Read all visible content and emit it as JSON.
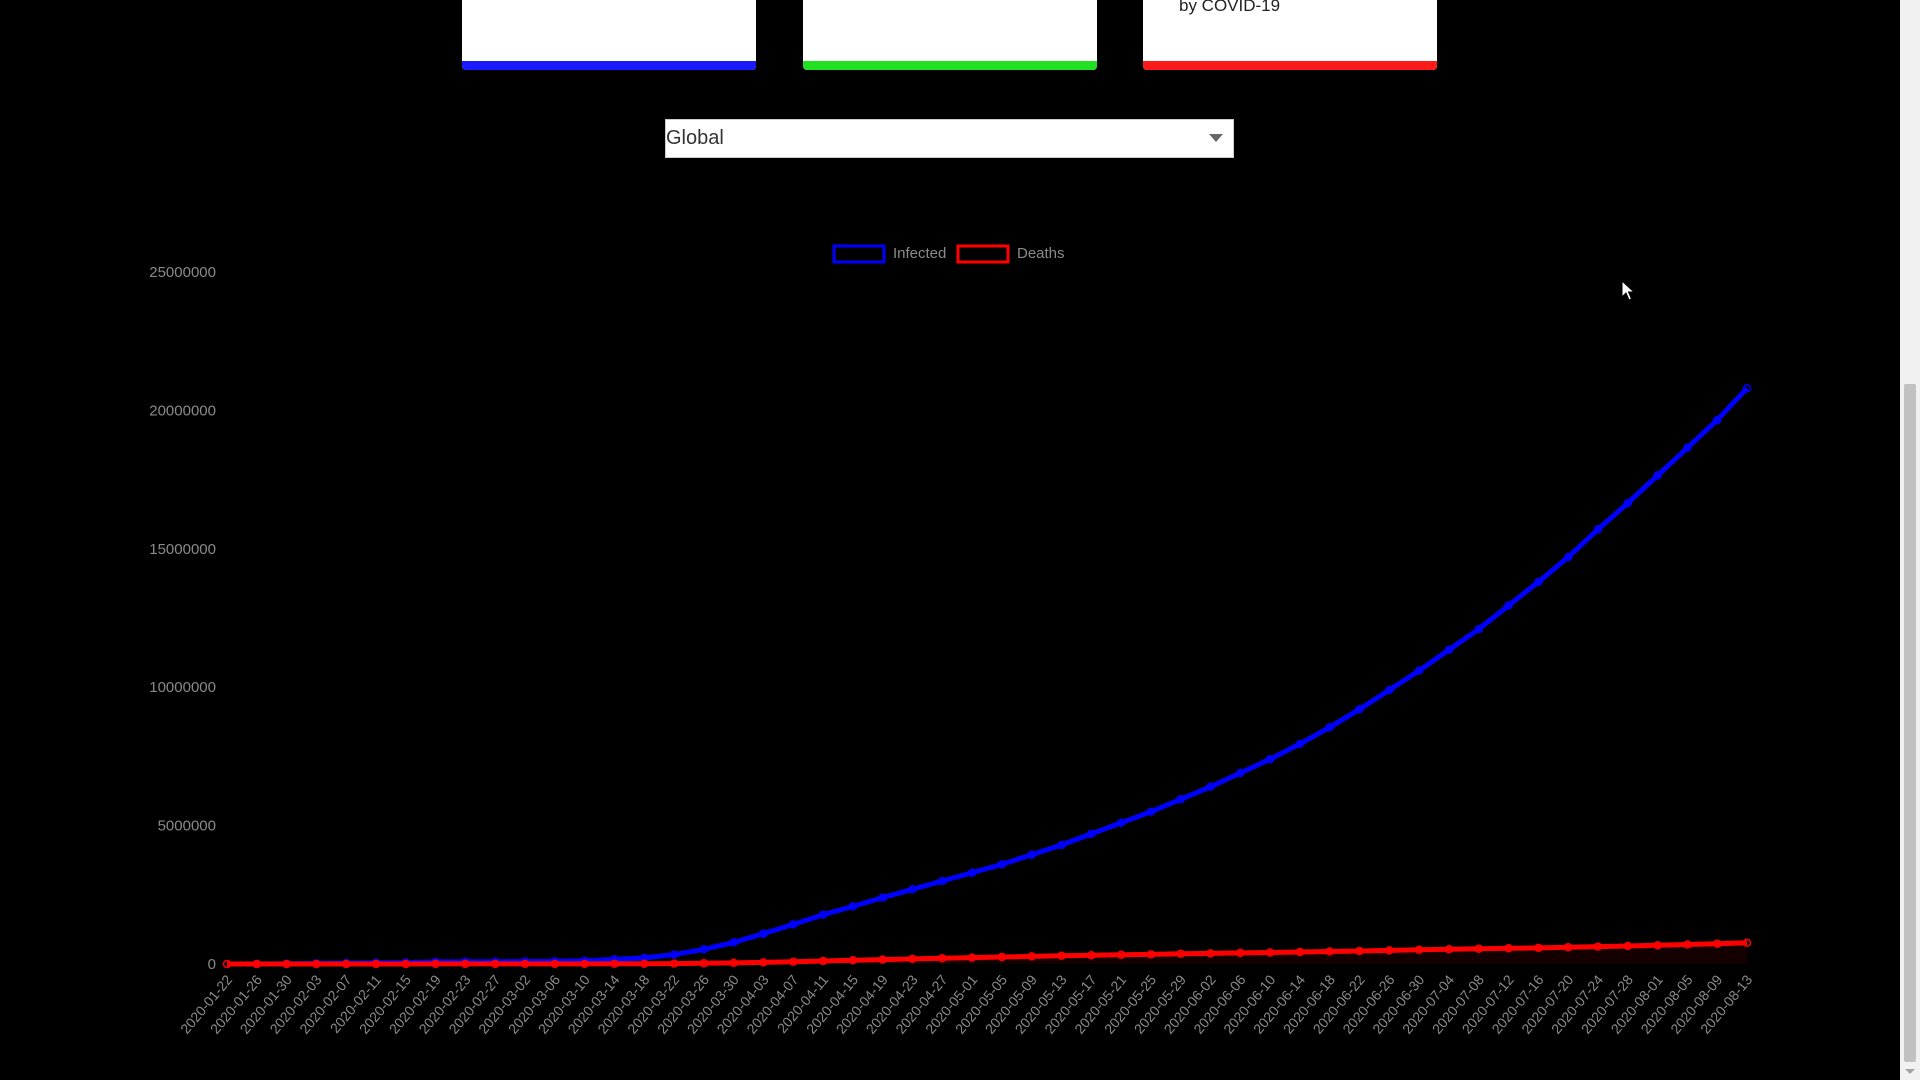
{
  "cards": {
    "infected": {
      "text": "",
      "color": "#1a1aff"
    },
    "recovered": {
      "text": "",
      "color": "#22e022"
    },
    "deaths": {
      "text": "by COVID-19",
      "color": "#ff1a1a"
    }
  },
  "country_select": {
    "value": "Global"
  },
  "chart_data": {
    "type": "line",
    "title": "",
    "xlabel": "",
    "ylabel": "",
    "legend_position": "top-center",
    "grid": false,
    "ylim": [
      0,
      25000000
    ],
    "y_ticks": [
      0,
      5000000,
      10000000,
      15000000,
      20000000,
      25000000
    ],
    "x_tick_labels": [
      "2020-01-22",
      "2020-01-26",
      "2020-01-30",
      "2020-02-03",
      "2020-02-07",
      "2020-02-11",
      "2020-02-15",
      "2020-02-19",
      "2020-02-23",
      "2020-02-27",
      "2020-03-02",
      "2020-03-06",
      "2020-03-10",
      "2020-03-14",
      "2020-03-18",
      "2020-03-22",
      "2020-03-26",
      "2020-03-30",
      "2020-04-03",
      "2020-04-07",
      "2020-04-11",
      "2020-04-15",
      "2020-04-19",
      "2020-04-23",
      "2020-04-27",
      "2020-05-01",
      "2020-05-05",
      "2020-05-09",
      "2020-05-13",
      "2020-05-17",
      "2020-05-21",
      "2020-05-25",
      "2020-05-29",
      "2020-06-02",
      "2020-06-06",
      "2020-06-10",
      "2020-06-14",
      "2020-06-18",
      "2020-06-22",
      "2020-06-26",
      "2020-06-30",
      "2020-07-04",
      "2020-07-08",
      "2020-07-12",
      "2020-07-16",
      "2020-07-20",
      "2020-07-24",
      "2020-07-28",
      "2020-08-01",
      "2020-08-05",
      "2020-08-09",
      "2020-08-13"
    ],
    "x": [
      "2020-01-22",
      "2020-01-26",
      "2020-01-30",
      "2020-02-03",
      "2020-02-07",
      "2020-02-11",
      "2020-02-15",
      "2020-02-19",
      "2020-02-23",
      "2020-02-27",
      "2020-03-02",
      "2020-03-06",
      "2020-03-10",
      "2020-03-14",
      "2020-03-18",
      "2020-03-22",
      "2020-03-26",
      "2020-03-30",
      "2020-04-03",
      "2020-04-07",
      "2020-04-11",
      "2020-04-15",
      "2020-04-19",
      "2020-04-23",
      "2020-04-27",
      "2020-05-01",
      "2020-05-05",
      "2020-05-09",
      "2020-05-13",
      "2020-05-17",
      "2020-05-21",
      "2020-05-25",
      "2020-05-29",
      "2020-06-02",
      "2020-06-06",
      "2020-06-10",
      "2020-06-14",
      "2020-06-18",
      "2020-06-22",
      "2020-06-26",
      "2020-06-30",
      "2020-07-04",
      "2020-07-08",
      "2020-07-12",
      "2020-07-16",
      "2020-07-20",
      "2020-07-24",
      "2020-07-28",
      "2020-08-01",
      "2020-08-05",
      "2020-08-09",
      "2020-08-13"
    ],
    "series": [
      {
        "name": "Infected",
        "color": "#0000ff",
        "values": [
          555,
          2100,
          9800,
          20000,
          34000,
          45000,
          51000,
          75000,
          79000,
          83000,
          90000,
          102000,
          119000,
          167000,
          220000,
          340000,
          530000,
          780000,
          1100000,
          1430000,
          1780000,
          2080000,
          2400000,
          2700000,
          3000000,
          3300000,
          3600000,
          3950000,
          4300000,
          4700000,
          5100000,
          5500000,
          5950000,
          6400000,
          6900000,
          7400000,
          7950000,
          8550000,
          9200000,
          9900000,
          10600000,
          11350000,
          12100000,
          12950000,
          13800000,
          14700000,
          15700000,
          16650000,
          17650000,
          18650000,
          19650000,
          20800000
        ]
      },
      {
        "name": "Deaths",
        "color": "#ff0000",
        "values": [
          17,
          56,
          213,
          427,
          719,
          1018,
          1526,
          2009,
          2469,
          2801,
          3110,
          3465,
          4262,
          5834,
          8900,
          14700,
          23900,
          38400,
          58800,
          81200,
          107900,
          132100,
          160400,
          185200,
          207300,
          230800,
          253700,
          275700,
          296900,
          318600,
          335200,
          348200,
          367500,
          382700,
          400100,
          417000,
          434800,
          451600,
          470700,
          491400,
          512400,
          530000,
          549000,
          565600,
          583000,
          605000,
          628000,
          650000,
          680000,
          705000,
          735000,
          765000
        ]
      }
    ]
  }
}
